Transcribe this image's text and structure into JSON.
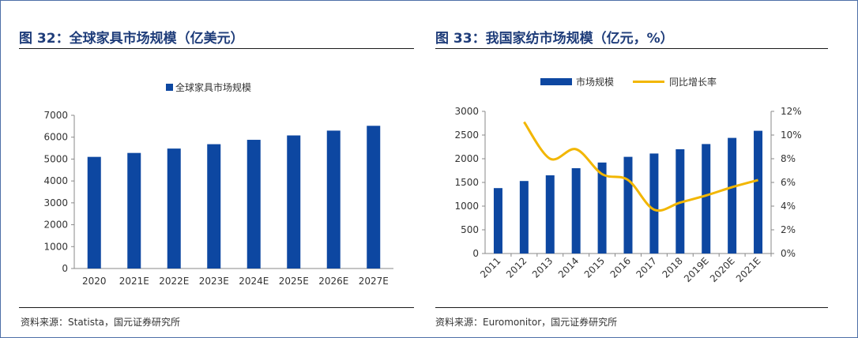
{
  "left_panel": {
    "title": "图 32：全球家具市场规模（亿美元）",
    "source": "资料来源：Statista，国元证券研究所"
  },
  "right_panel": {
    "title": "图 33：我国家纺市场规模（亿元，%）",
    "source": "资料来源：Euromonitor，国元证券研究所"
  },
  "colors": {
    "bar": "#0d47a1",
    "line": "#f2b600",
    "title": "#1f3d7a"
  },
  "chart_data": [
    {
      "type": "bar",
      "title": "",
      "legend": [
        "全球家具市场规模"
      ],
      "legend_position": "top",
      "categories": [
        "2020",
        "2021E",
        "2022E",
        "2023E",
        "2024E",
        "2025E",
        "2026E",
        "2027E"
      ],
      "series": [
        {
          "name": "全球家具市场规模",
          "values": [
            5100,
            5280,
            5480,
            5680,
            5880,
            6080,
            6300,
            6520
          ]
        }
      ],
      "ylim": [
        0,
        7000
      ],
      "yticks": [
        0,
        1000,
        2000,
        3000,
        4000,
        5000,
        6000,
        7000
      ],
      "grid": false
    },
    {
      "type": "bar+line",
      "title": "",
      "legend": [
        "市场规模",
        "同比增长率"
      ],
      "legend_position": "top",
      "categories": [
        "2011",
        "2012",
        "2013",
        "2014",
        "2015",
        "2016",
        "2017",
        "2018",
        "2019E",
        "2020E",
        "2021E"
      ],
      "series": [
        {
          "name": "市场规模",
          "type": "bar",
          "axis": "left",
          "values": [
            1380,
            1530,
            1650,
            1800,
            1920,
            2040,
            2110,
            2200,
            2310,
            2440,
            2590
          ]
        },
        {
          "name": "同比增长率",
          "type": "line",
          "axis": "right",
          "unit": "%",
          "values": [
            null,
            11.1,
            8.0,
            8.8,
            6.7,
            6.2,
            3.7,
            4.3,
            4.9,
            5.6,
            6.2
          ]
        }
      ],
      "ylim_left": [
        0,
        3000
      ],
      "yticks_left": [
        0,
        500,
        1000,
        1500,
        2000,
        2500,
        3000
      ],
      "ylim_right": [
        0,
        12
      ],
      "yticks_right": [
        "0%",
        "2%",
        "4%",
        "6%",
        "8%",
        "10%",
        "12%"
      ],
      "grid": false
    }
  ]
}
